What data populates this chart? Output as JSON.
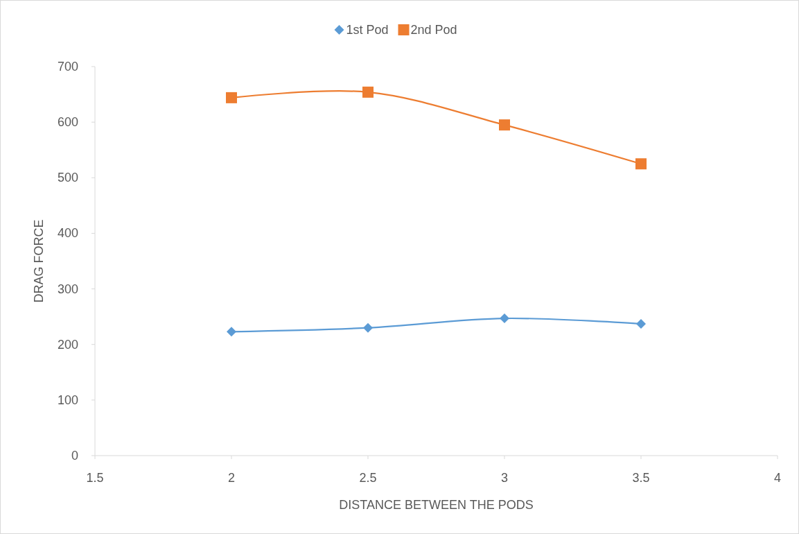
{
  "chart_data": {
    "type": "line",
    "xlabel": "DISTANCE BETWEEN THE PODS",
    "ylabel": "DRAG FORCE",
    "x": [
      2,
      2.5,
      3,
      3.5
    ],
    "series": [
      {
        "name": "1st Pod",
        "color": "#5b9bd5",
        "marker": "diamond",
        "values": [
          223,
          230,
          247,
          237
        ]
      },
      {
        "name": "2nd Pod",
        "color": "#ed7d31",
        "marker": "square",
        "values": [
          644,
          654,
          595,
          525
        ]
      }
    ],
    "xlim": [
      1.5,
      4
    ],
    "xticks": [
      1.5,
      2,
      2.5,
      3,
      3.5,
      4
    ],
    "ylim": [
      0,
      700
    ],
    "yticks": [
      0,
      100,
      200,
      300,
      400,
      500,
      600,
      700
    ],
    "grid": false,
    "legend": "top",
    "line_style": "solid"
  }
}
